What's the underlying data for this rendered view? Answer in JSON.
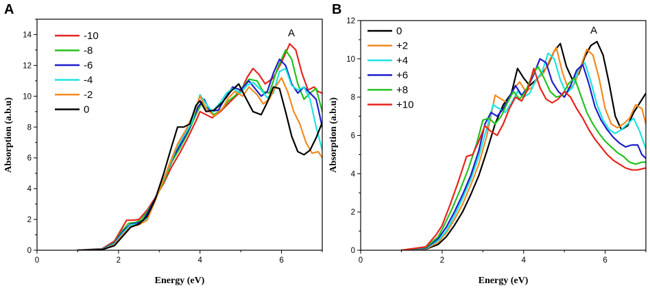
{
  "chart_data": [
    {
      "panel": "A",
      "type": "line",
      "title": "",
      "xlabel": "Energy (eV)",
      "ylabel": "Absorption (a.b.u)",
      "xlim": [
        0,
        7
      ],
      "ylim": [
        0,
        15
      ],
      "xticks": [
        "0",
        "2",
        "4",
        "6"
      ],
      "yticks": [
        "0",
        "2",
        "4",
        "6",
        "8",
        "10",
        "12",
        "14"
      ],
      "annotation": "A",
      "legend_position": "top-left",
      "series": [
        {
          "name": "-10",
          "color": "#e8221c",
          "x": [
            1,
            1.6,
            1.9,
            2.1,
            2.2,
            2.35,
            2.5,
            2.7,
            2.9,
            3.1,
            3.3,
            3.5,
            3.7,
            3.9,
            4.0,
            4.15,
            4.3,
            4.5,
            4.65,
            4.8,
            5.0,
            5.15,
            5.3,
            5.45,
            5.6,
            5.8,
            6.0,
            6.2,
            6.35,
            6.5,
            6.65,
            6.8,
            6.9,
            7.0
          ],
          "y": [
            0,
            0.1,
            0.6,
            1.5,
            1.95,
            1.95,
            2.0,
            2.6,
            3.4,
            4.3,
            5.4,
            6.3,
            7.3,
            8.4,
            9.0,
            8.8,
            8.6,
            9.0,
            9.4,
            9.8,
            10.3,
            11.2,
            11.8,
            11.4,
            10.8,
            11.2,
            12.2,
            13.4,
            13.0,
            11.5,
            10.4,
            10.6,
            10.3,
            10.2
          ]
        },
        {
          "name": "-8",
          "color": "#22c21c",
          "x": [
            1,
            1.6,
            1.9,
            2.1,
            2.25,
            2.4,
            2.55,
            2.7,
            2.9,
            3.1,
            3.3,
            3.5,
            3.7,
            3.9,
            4.05,
            4.2,
            4.35,
            4.55,
            4.7,
            4.85,
            5.05,
            5.2,
            5.4,
            5.55,
            5.7,
            5.9,
            6.1,
            6.25,
            6.4,
            6.55,
            6.7,
            6.85,
            7.0
          ],
          "y": [
            0,
            0.08,
            0.5,
            1.3,
            1.75,
            1.8,
            1.95,
            2.5,
            3.3,
            4.4,
            5.7,
            6.6,
            7.6,
            8.8,
            9.6,
            9.1,
            8.8,
            9.2,
            9.7,
            10.0,
            10.6,
            11.1,
            11.0,
            10.3,
            10.2,
            11.8,
            13.0,
            12.4,
            10.8,
            9.8,
            10.2,
            10.5,
            9.0
          ]
        },
        {
          "name": "-6",
          "color": "#1c1ccc",
          "x": [
            1,
            1.6,
            1.9,
            2.1,
            2.3,
            2.45,
            2.6,
            2.75,
            2.95,
            3.15,
            3.35,
            3.55,
            3.75,
            3.95,
            4.1,
            4.25,
            4.45,
            4.6,
            4.8,
            5.0,
            5.2,
            5.35,
            5.5,
            5.65,
            5.8,
            5.95,
            6.1,
            6.25,
            6.4,
            6.55,
            6.7,
            6.85,
            7.0
          ],
          "y": [
            0,
            0.07,
            0.45,
            1.2,
            1.7,
            1.75,
            1.9,
            2.6,
            3.6,
            4.9,
            6.1,
            7.0,
            8.0,
            9.3,
            9.8,
            9.0,
            9.1,
            9.8,
            10.6,
            10.4,
            11.0,
            10.5,
            10.0,
            10.3,
            11.5,
            12.4,
            12.0,
            10.8,
            10.2,
            10.6,
            10.2,
            9.8,
            8.0
          ]
        },
        {
          "name": "-4",
          "color": "#1ce3e3",
          "x": [
            1,
            1.6,
            1.9,
            2.1,
            2.3,
            2.5,
            2.65,
            2.8,
            3.0,
            3.2,
            3.4,
            3.6,
            3.8,
            4.0,
            4.15,
            4.3,
            4.5,
            4.65,
            4.8,
            5.0,
            5.15,
            5.3,
            5.5,
            5.65,
            5.8,
            5.95,
            6.1,
            6.25,
            6.4,
            6.55,
            6.7,
            6.85,
            7.0
          ],
          "y": [
            0,
            0.06,
            0.4,
            1.1,
            1.65,
            1.7,
            1.9,
            2.7,
            3.9,
            5.2,
            6.5,
            7.4,
            8.3,
            10.1,
            9.5,
            9.0,
            9.6,
            10.2,
            10.5,
            10.2,
            10.7,
            10.9,
            10.4,
            9.9,
            10.2,
            11.6,
            11.8,
            10.7,
            10.4,
            10.6,
            9.8,
            8.0,
            6.5
          ]
        },
        {
          "name": "-2",
          "color": "#f5891e",
          "x": [
            1,
            1.6,
            1.9,
            2.1,
            2.3,
            2.5,
            2.7,
            2.85,
            3.05,
            3.25,
            3.45,
            3.65,
            3.85,
            4.0,
            4.15,
            4.35,
            4.55,
            4.7,
            4.85,
            5.05,
            5.2,
            5.4,
            5.55,
            5.7,
            5.85,
            6.0,
            6.15,
            6.3,
            6.45,
            6.6,
            6.75,
            6.9,
            7.0
          ],
          "y": [
            0,
            0.05,
            0.35,
            1.0,
            1.55,
            1.65,
            1.95,
            2.9,
            4.2,
            5.6,
            6.9,
            7.8,
            8.9,
            10.0,
            9.2,
            8.7,
            9.2,
            9.9,
            10.3,
            10.0,
            10.6,
            10.1,
            9.5,
            9.8,
            10.6,
            11.2,
            10.3,
            9.0,
            8.2,
            7.0,
            6.3,
            6.4,
            6.0
          ]
        },
        {
          "name": "0",
          "color": "#000000",
          "x": [
            1,
            1.6,
            1.9,
            2.1,
            2.3,
            2.5,
            2.7,
            2.9,
            3.1,
            3.3,
            3.45,
            3.6,
            3.75,
            3.9,
            4.0,
            4.15,
            4.35,
            4.55,
            4.75,
            4.95,
            5.1,
            5.3,
            5.5,
            5.65,
            5.8,
            5.95,
            6.1,
            6.25,
            6.4,
            6.55,
            6.7,
            6.85,
            7.0
          ],
          "y": [
            0,
            0.04,
            0.3,
            0.9,
            1.5,
            1.7,
            2.2,
            3.3,
            4.9,
            6.7,
            8.0,
            8.0,
            8.2,
            9.4,
            9.7,
            9.0,
            9.1,
            9.6,
            10.3,
            10.8,
            10.0,
            9.0,
            8.8,
            9.6,
            10.6,
            10.5,
            9.0,
            7.4,
            6.4,
            6.2,
            6.5,
            7.3,
            8.3
          ]
        }
      ]
    },
    {
      "panel": "B",
      "type": "line",
      "title": "",
      "xlabel": "Energy (eV)",
      "ylabel": "Absorption (a.b.u)",
      "xlim": [
        0,
        7
      ],
      "ylim": [
        0,
        12
      ],
      "xticks": [
        "0",
        "2",
        "4",
        "6"
      ],
      "yticks": [
        "0",
        "2",
        "4",
        "6",
        "8",
        "10",
        "12"
      ],
      "annotation": "A",
      "legend_position": "top-left",
      "series": [
        {
          "name": "0",
          "color": "#000000",
          "x": [
            1,
            1.6,
            1.9,
            2.1,
            2.3,
            2.5,
            2.7,
            2.9,
            3.1,
            3.3,
            3.5,
            3.7,
            3.85,
            4.0,
            4.15,
            4.3,
            4.45,
            4.6,
            4.75,
            4.9,
            5.05,
            5.2,
            5.35,
            5.5,
            5.65,
            5.8,
            5.95,
            6.1,
            6.25,
            6.4,
            6.55,
            6.7,
            6.85,
            7.0
          ],
          "y": [
            0,
            0.06,
            0.3,
            0.7,
            1.3,
            2.0,
            2.9,
            3.9,
            5.2,
            6.6,
            7.6,
            8.2,
            9.5,
            9.0,
            8.6,
            8.9,
            9.2,
            9.7,
            10.4,
            10.8,
            9.6,
            8.9,
            9.2,
            10.1,
            10.7,
            10.9,
            10.2,
            8.7,
            7.0,
            6.3,
            6.5,
            7.2,
            7.7,
            8.2
          ]
        },
        {
          "name": "+2",
          "color": "#f5891e",
          "x": [
            1,
            1.6,
            1.9,
            2.1,
            2.3,
            2.5,
            2.7,
            2.9,
            3.1,
            3.3,
            3.45,
            3.6,
            3.75,
            3.9,
            4.05,
            4.2,
            4.35,
            4.5,
            4.65,
            4.8,
            4.95,
            5.1,
            5.25,
            5.4,
            5.55,
            5.7,
            5.85,
            6.0,
            6.15,
            6.3,
            6.45,
            6.6,
            6.75,
            6.9,
            7.0
          ],
          "y": [
            0,
            0.08,
            0.4,
            0.9,
            1.6,
            2.4,
            3.4,
            4.5,
            6.0,
            8.1,
            7.9,
            7.7,
            8.4,
            8.8,
            8.3,
            8.5,
            9.0,
            9.3,
            10.0,
            10.6,
            9.3,
            8.4,
            8.7,
            9.6,
            10.5,
            10.2,
            9.0,
            7.4,
            6.6,
            6.4,
            6.6,
            6.9,
            7.6,
            7.4,
            6.6
          ]
        },
        {
          "name": "+4",
          "color": "#1ce3e3",
          "x": [
            1,
            1.6,
            1.9,
            2.1,
            2.3,
            2.5,
            2.7,
            2.9,
            3.1,
            3.25,
            3.4,
            3.55,
            3.7,
            3.85,
            4.0,
            4.15,
            4.3,
            4.45,
            4.6,
            4.75,
            4.9,
            5.05,
            5.2,
            5.35,
            5.5,
            5.65,
            5.8,
            5.95,
            6.1,
            6.25,
            6.4,
            6.55,
            6.7,
            6.85,
            7.0
          ],
          "y": [
            0,
            0.1,
            0.5,
            1.0,
            1.8,
            2.7,
            3.7,
            4.9,
            6.4,
            7.6,
            7.4,
            7.2,
            7.7,
            8.3,
            8.0,
            8.2,
            8.9,
            9.3,
            10.3,
            10.0,
            8.9,
            8.2,
            8.5,
            9.5,
            9.8,
            8.8,
            7.6,
            6.8,
            6.3,
            6.1,
            6.3,
            6.6,
            6.9,
            6.2,
            5.3
          ]
        },
        {
          "name": "+6",
          "color": "#1c1ccc",
          "x": [
            1,
            1.6,
            1.9,
            2.1,
            2.3,
            2.5,
            2.7,
            2.9,
            3.05,
            3.2,
            3.35,
            3.5,
            3.65,
            3.8,
            3.95,
            4.1,
            4.25,
            4.4,
            4.55,
            4.7,
            4.85,
            5.0,
            5.15,
            5.3,
            5.45,
            5.6,
            5.75,
            5.9,
            6.05,
            6.2,
            6.35,
            6.5,
            6.65,
            6.8,
            6.9,
            7.0
          ],
          "y": [
            0,
            0.12,
            0.6,
            1.2,
            2.0,
            2.9,
            3.9,
            5.2,
            6.6,
            7.2,
            7.0,
            7.4,
            8.0,
            8.6,
            8.1,
            8.5,
            9.2,
            10.0,
            9.8,
            8.8,
            8.3,
            8.0,
            8.6,
            9.4,
            9.7,
            8.7,
            7.5,
            6.8,
            6.3,
            5.9,
            5.6,
            5.4,
            5.5,
            5.5,
            5.0,
            4.8
          ]
        },
        {
          "name": "+8",
          "color": "#22c21c",
          "x": [
            1,
            1.6,
            1.9,
            2.05,
            2.25,
            2.45,
            2.65,
            2.85,
            3.0,
            3.15,
            3.3,
            3.45,
            3.6,
            3.75,
            3.9,
            4.05,
            4.2,
            4.35,
            4.5,
            4.65,
            4.8,
            4.95,
            5.1,
            5.25,
            5.4,
            5.55,
            5.7,
            5.85,
            6.0,
            6.15,
            6.3,
            6.45,
            6.6,
            6.75,
            6.9,
            7.0
          ],
          "y": [
            0,
            0.15,
            0.7,
            1.3,
            2.2,
            3.2,
            4.3,
            5.6,
            6.8,
            6.9,
            6.6,
            7.0,
            7.7,
            8.3,
            7.9,
            8.3,
            9.1,
            9.6,
            9.0,
            8.3,
            8.0,
            8.1,
            8.7,
            9.0,
            8.1,
            7.2,
            6.6,
            6.1,
            5.7,
            5.4,
            5.1,
            4.9,
            4.6,
            4.5,
            4.6,
            4.6
          ]
        },
        {
          "name": "+10",
          "color": "#e8221c",
          "x": [
            1,
            1.6,
            1.85,
            2.0,
            2.2,
            2.4,
            2.6,
            2.75,
            2.9,
            3.05,
            3.2,
            3.35,
            3.5,
            3.65,
            3.8,
            3.95,
            4.1,
            4.25,
            4.4,
            4.55,
            4.7,
            4.85,
            5.0,
            5.15,
            5.3,
            5.45,
            5.6,
            5.75,
            5.9,
            6.05,
            6.2,
            6.35,
            6.5,
            6.65,
            6.8,
            7.0
          ],
          "y": [
            0,
            0.18,
            0.8,
            1.3,
            2.4,
            3.6,
            4.9,
            5.0,
            5.7,
            6.5,
            6.2,
            6.0,
            6.6,
            7.4,
            8.0,
            7.8,
            8.4,
            9.5,
            8.5,
            7.9,
            7.7,
            7.9,
            8.3,
            8.0,
            7.4,
            6.9,
            6.3,
            5.8,
            5.4,
            5.0,
            4.7,
            4.5,
            4.3,
            4.2,
            4.2,
            4.3
          ]
        }
      ]
    }
  ]
}
